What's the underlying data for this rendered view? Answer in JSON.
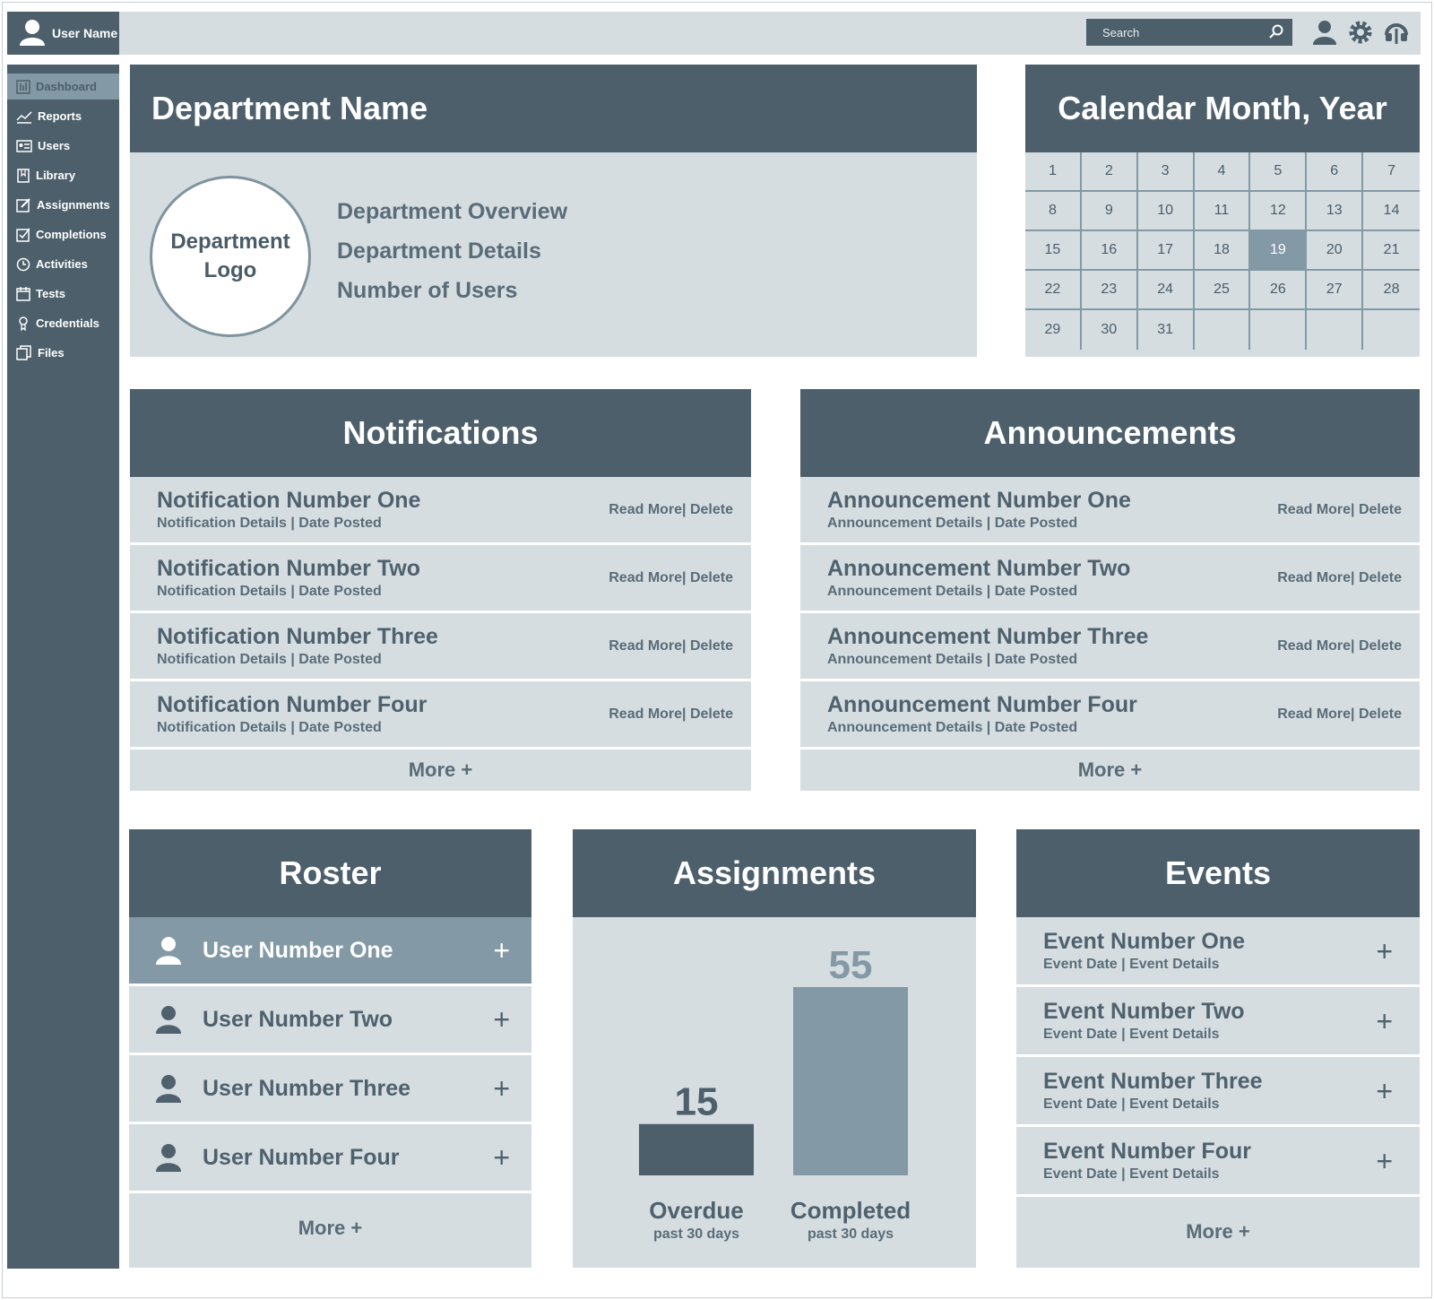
{
  "header": {
    "user_name": "User Name",
    "search_placeholder": "Search",
    "icons": [
      "user-icon",
      "gear-icon",
      "headset-icon"
    ]
  },
  "sidebar": {
    "items": [
      {
        "label": "Dashboard",
        "icon": "dashboard-icon",
        "active": true
      },
      {
        "label": "Reports",
        "icon": "chart-line-icon"
      },
      {
        "label": "Users",
        "icon": "id-card-icon"
      },
      {
        "label": "Library",
        "icon": "book-icon"
      },
      {
        "label": "Assignments",
        "icon": "edit-icon"
      },
      {
        "label": "Completions",
        "icon": "checkbox-icon"
      },
      {
        "label": "Activities",
        "icon": "clock-icon"
      },
      {
        "label": "Tests",
        "icon": "calendar-grid-icon"
      },
      {
        "label": "Credentials",
        "icon": "badge-icon"
      },
      {
        "label": "Files",
        "icon": "files-icon"
      }
    ]
  },
  "department": {
    "title": "Department Name",
    "logo_text": "Department Logo",
    "overview": "Department Overview",
    "details": "Department Details",
    "users": "Number of Users"
  },
  "calendar": {
    "title": "Calendar Month, Year",
    "days": [
      "1",
      "2",
      "3",
      "4",
      "5",
      "6",
      "7",
      "8",
      "9",
      "10",
      "11",
      "12",
      "13",
      "14",
      "15",
      "16",
      "17",
      "18",
      "19",
      "20",
      "21",
      "22",
      "23",
      "24",
      "25",
      "26",
      "27",
      "28",
      "29",
      "30",
      "31",
      "",
      "",
      "",
      ""
    ],
    "selected_day": "19"
  },
  "notifications": {
    "title": "Notifications",
    "items": [
      {
        "title": "Notification Number One",
        "sub": "Notification Details | Date Posted"
      },
      {
        "title": "Notification Number Two",
        "sub": "Notification Details | Date Posted"
      },
      {
        "title": "Notification Number Three",
        "sub": "Notification Details | Date Posted"
      },
      {
        "title": "Notification Number Four",
        "sub": "Notification Details | Date Posted"
      }
    ],
    "read_more": "Read More|",
    "delete": " Delete",
    "more": "More +"
  },
  "announcements": {
    "title": "Announcements",
    "items": [
      {
        "title": "Announcement Number One",
        "sub": "Announcement Details | Date Posted"
      },
      {
        "title": "Announcement Number Two",
        "sub": "Announcement Details | Date Posted"
      },
      {
        "title": "Announcement Number Three",
        "sub": "Announcement Details | Date Posted"
      },
      {
        "title": "Announcement Number Four",
        "sub": "Announcement Details | Date Posted"
      }
    ],
    "read_more": "Read More|",
    "delete": " Delete",
    "more": "More +"
  },
  "roster": {
    "title": "Roster",
    "users": [
      "User Number One",
      "User Number Two",
      "User Number Three",
      "User Number Four"
    ],
    "plus": "+",
    "more": "More +"
  },
  "assignments": {
    "title": "Assignments",
    "overdue_value": "15",
    "overdue_label": "Overdue",
    "overdue_sub": "past 30 days",
    "completed_value": "55",
    "completed_label": "Completed",
    "completed_sub": "past 30 days"
  },
  "chart_data": {
    "type": "bar",
    "categories": [
      "Overdue",
      "Completed"
    ],
    "values": [
      15,
      55
    ],
    "title": "Assignments",
    "xlabel": "",
    "ylabel": "",
    "colors": [
      "#4c5f6b",
      "#8399a5"
    ]
  },
  "events": {
    "title": "Events",
    "items": [
      {
        "title": "Event Number One",
        "sub": "Event Date | Event Details"
      },
      {
        "title": "Event Number Two",
        "sub": "Event Date | Event Details"
      },
      {
        "title": "Event Number Three",
        "sub": "Event Date | Event Details"
      },
      {
        "title": "Event Number Four",
        "sub": "Event Date | Event Details"
      }
    ],
    "plus": "+",
    "more": "More +"
  },
  "colors": {
    "dark": "#4c5f6b",
    "mid": "#8399a5",
    "light": "#d5dde1"
  }
}
